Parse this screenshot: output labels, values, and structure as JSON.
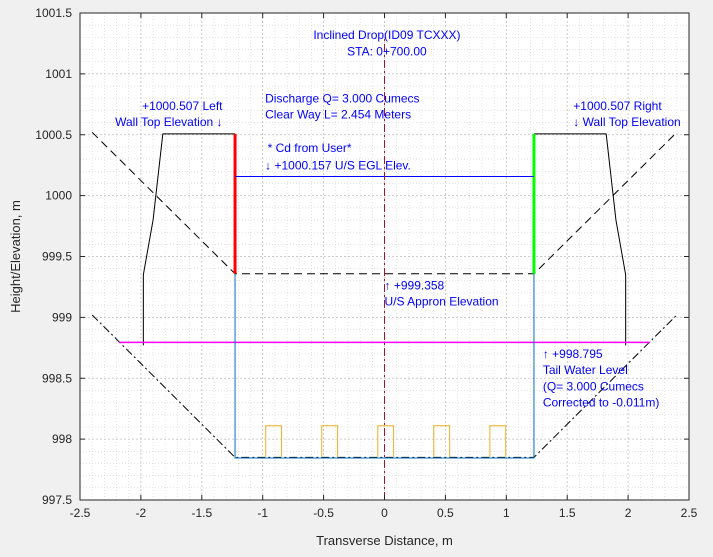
{
  "chart_data": {
    "type": "line",
    "xlabel": "Transverse Distance, m",
    "ylabel": "Height/Elevation, m",
    "xlim": [
      -2.5,
      2.5
    ],
    "ylim": [
      997.5,
      1001.5
    ],
    "xticks": [
      -2.5,
      -2,
      -1.5,
      -1,
      -0.5,
      0,
      0.5,
      1,
      1.5,
      2,
      2.5
    ],
    "xtick_labels": [
      "-2.5",
      "-2",
      "-1.5",
      "-1",
      "-0.5",
      "0",
      "0.5",
      "1",
      "1.5",
      "2",
      "2.5"
    ],
    "yticks": [
      997.5,
      998,
      998.5,
      999,
      999.5,
      1000,
      1000.5,
      1001,
      1001.5
    ],
    "ytick_labels": [
      "997.5",
      "998",
      "998.5",
      "999",
      "999.5",
      "1000",
      "1000.5",
      "1001",
      "1001.5"
    ],
    "grid": true,
    "minor_grid": true,
    "box": true,
    "series": [
      {
        "style": "dashed",
        "color": "#000000",
        "width": 1,
        "x": [
          -2.4,
          -1.227,
          1.227,
          2.4
        ],
        "y": [
          1000.52,
          999.358,
          999.358,
          1000.52
        ]
      },
      {
        "style": "dashdot",
        "color": "#000000",
        "width": 1,
        "x": [
          -2.4,
          -1.227,
          1.227,
          2.4
        ],
        "y": [
          999.02,
          997.85,
          997.85,
          999.02
        ]
      },
      {
        "style": "solid",
        "color": "#000000",
        "width": 1,
        "x": [
          -1.227,
          -1.82,
          -1.9,
          -1.98,
          -1.98
        ],
        "y": [
          1000.507,
          1000.507,
          999.8,
          999.35,
          998.77
        ]
      },
      {
        "style": "solid",
        "color": "#000000",
        "width": 1,
        "x": [
          1.227,
          1.82,
          1.9,
          1.98,
          1.98
        ],
        "y": [
          1000.507,
          1000.507,
          999.8,
          999.35,
          998.77
        ]
      },
      {
        "style": "solid",
        "color": "#ff0000",
        "width": 3,
        "x": [
          -1.227,
          -1.227
        ],
        "y": [
          999.358,
          1000.507
        ]
      },
      {
        "style": "solid",
        "color": "#00ff00",
        "width": 3,
        "x": [
          1.227,
          1.227
        ],
        "y": [
          999.358,
          1000.507
        ]
      },
      {
        "style": "solid",
        "color": "#0000ff",
        "width": 1,
        "x": [
          -1.227,
          1.227
        ],
        "y": [
          1000.157,
          1000.157
        ]
      },
      {
        "style": "solid",
        "color": "#ff00ff",
        "width": 1.5,
        "x": [
          -2.18,
          2.18
        ],
        "y": [
          998.795,
          998.795
        ]
      },
      {
        "style": "solid",
        "color": "#0072bd",
        "width": 1,
        "x": [
          -1.227,
          -1.227,
          1.227,
          1.227
        ],
        "y": [
          999.358,
          997.845,
          997.845,
          999.358
        ]
      },
      {
        "style": "dashdot",
        "color": "#a2142f",
        "width": 1,
        "x": [
          0,
          0
        ],
        "y": [
          997.5,
          1001.3
        ]
      },
      {
        "style": "solid",
        "color": "#edb120",
        "width": 1,
        "x": [
          -0.975,
          -0.975,
          -0.845,
          -0.845
        ],
        "y": [
          997.855,
          998.11,
          998.11,
          997.855
        ]
      },
      {
        "style": "solid",
        "color": "#edb120",
        "width": 1,
        "x": [
          -0.515,
          -0.515,
          -0.385,
          -0.385
        ],
        "y": [
          997.855,
          998.11,
          998.11,
          997.855
        ]
      },
      {
        "style": "solid",
        "color": "#edb120",
        "width": 1,
        "x": [
          -0.055,
          -0.055,
          0.075,
          0.075
        ],
        "y": [
          997.855,
          998.11,
          998.11,
          997.855
        ]
      },
      {
        "style": "solid",
        "color": "#edb120",
        "width": 1,
        "x": [
          0.405,
          0.405,
          0.535,
          0.535
        ],
        "y": [
          997.855,
          998.11,
          998.11,
          997.855
        ]
      },
      {
        "style": "solid",
        "color": "#edb120",
        "width": 1,
        "x": [
          0.865,
          0.865,
          0.995,
          0.995
        ],
        "y": [
          997.855,
          998.11,
          998.11,
          997.855
        ]
      }
    ],
    "annotations": [
      {
        "text": "Inclined Drop(ID09 TCXXX)",
        "x": 0.02,
        "y": 1001.285,
        "align": "middle"
      },
      {
        "text": "STA: 0+700.00",
        "x": 0.02,
        "y": 1001.152,
        "align": "middle"
      },
      {
        "text": "Discharge Q= 3.000 Cumecs",
        "x": -0.98,
        "y": 1000.765,
        "align": "start"
      },
      {
        "text": "Clear Way L= 2.454 Meters",
        "x": -0.98,
        "y": 1000.632,
        "align": "start"
      },
      {
        "text": "+1000.507  Left",
        "x": -1.33,
        "y": 1000.705,
        "align": "end"
      },
      {
        "text": "Wall Top Elevation  ↓",
        "x": -1.33,
        "y": 1000.572,
        "align": "end"
      },
      {
        "text": "+1000.507  Right",
        "x": 1.55,
        "y": 1000.705,
        "align": "start"
      },
      {
        "text": "↓   Wall Top Elevation",
        "x": 1.55,
        "y": 1000.572,
        "align": "start"
      },
      {
        "text": "* Cd from User*",
        "x": -0.96,
        "y": 1000.357,
        "align": "start"
      },
      {
        "text": "↓ +1000.157 U/S EGL Elev.",
        "x": -0.98,
        "y": 1000.213,
        "align": "start"
      },
      {
        "text": "↑ +999.358",
        "x": 0.0,
        "y": 999.229,
        "align": "start"
      },
      {
        "text": "U/S Appron Elevation",
        "x": 0.0,
        "y": 999.097,
        "align": "start"
      },
      {
        "text": "↑ +998.795",
        "x": 1.3,
        "y": 998.667,
        "align": "start"
      },
      {
        "text": "Tail Water Level",
        "x": 1.3,
        "y": 998.534,
        "align": "start"
      },
      {
        "text": "(Q= 3.000 Cumecs",
        "x": 1.3,
        "y": 998.4,
        "align": "start"
      },
      {
        "text": "Corrected to -0.011m)",
        "x": 1.3,
        "y": 998.267,
        "align": "start"
      }
    ]
  }
}
